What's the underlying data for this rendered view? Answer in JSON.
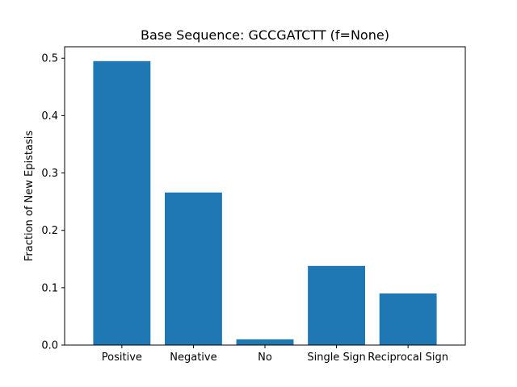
{
  "chart_data": {
    "type": "bar",
    "title": "Base Sequence: GCCGATCTT (f=None)",
    "xlabel": "",
    "ylabel": "Fraction of New Epistasis",
    "categories": [
      "Positive",
      "Negative",
      "No",
      "Single Sign",
      "Reciprocal Sign"
    ],
    "values": [
      0.495,
      0.266,
      0.01,
      0.138,
      0.09
    ],
    "ylim": [
      0,
      0.52
    ],
    "yticks": [
      0.0,
      0.1,
      0.2,
      0.3,
      0.4,
      0.5
    ],
    "ytick_labels": [
      "0.0",
      "0.1",
      "0.2",
      "0.3",
      "0.4",
      "0.5"
    ],
    "grid": false,
    "legend": "none",
    "bar_color": "#1f77b4"
  }
}
